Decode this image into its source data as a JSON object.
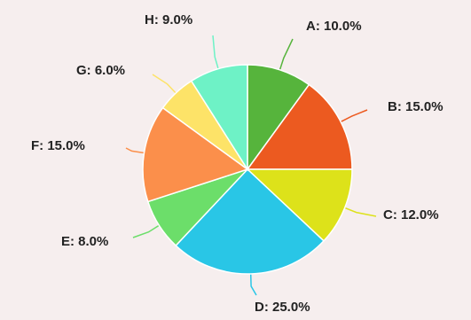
{
  "chart_data": {
    "type": "pie",
    "title": "",
    "slices": [
      {
        "label": "A",
        "value": 10.0,
        "display": "A: 10.0%",
        "color": "#56b43c"
      },
      {
        "label": "B",
        "value": 15.0,
        "display": "B: 15.0%",
        "color": "#ec5a20"
      },
      {
        "label": "C",
        "value": 12.0,
        "display": "C: 12.0%",
        "color": "#dde21a"
      },
      {
        "label": "D",
        "value": 25.0,
        "display": "D: 25.0%",
        "color": "#29c6e6"
      },
      {
        "label": "E",
        "value": 8.0,
        "display": "E: 8.0%",
        "color": "#6cde6a"
      },
      {
        "label": "F",
        "value": 15.0,
        "display": "F: 15.0%",
        "color": "#fb8f4b"
      },
      {
        "label": "G",
        "value": 6.0,
        "display": "G: 6.0%",
        "color": "#fde368"
      },
      {
        "label": "H",
        "value": 9.0,
        "display": "H: 9.0%",
        "color": "#6ef2c6"
      }
    ],
    "start_angle": "12 o'clock",
    "direction": "clockwise",
    "legend": "none"
  }
}
